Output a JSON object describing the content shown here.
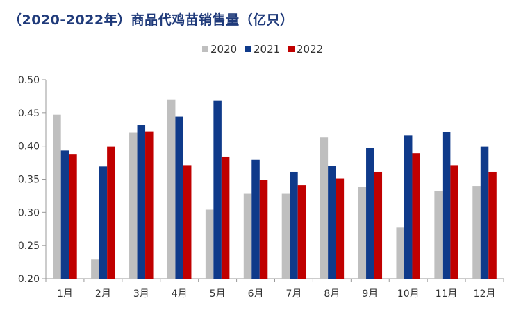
{
  "title": "（2020-2022年）商品代鸡苗销售量（亿只）",
  "chart_data": {
    "type": "bar",
    "title": "（2020-2022年）商品代鸡苗销售量（亿只）",
    "xlabel": "",
    "ylabel": "",
    "categories": [
      "1月",
      "2月",
      "3月",
      "4月",
      "5月",
      "6月",
      "7月",
      "8月",
      "9月",
      "10月",
      "11月",
      "12月"
    ],
    "series": [
      {
        "name": "2020",
        "color": "#bfbfbf",
        "values": [
          0.447,
          0.229,
          0.42,
          0.47,
          0.304,
          0.328,
          0.328,
          0.413,
          0.338,
          0.277,
          0.332,
          0.34
        ]
      },
      {
        "name": "2021",
        "color": "#0f3a8a",
        "values": [
          0.393,
          0.369,
          0.431,
          0.444,
          0.469,
          0.379,
          0.361,
          0.37,
          0.397,
          0.416,
          0.421,
          0.399
        ]
      },
      {
        "name": "2022",
        "color": "#c00000",
        "values": [
          0.388,
          0.399,
          0.422,
          0.371,
          0.384,
          0.349,
          0.341,
          0.351,
          0.361,
          0.389,
          0.371,
          0.361
        ]
      }
    ],
    "ylim": [
      0.2,
      0.5
    ],
    "yticks": [
      "0.20",
      "0.25",
      "0.30",
      "0.35",
      "0.40",
      "0.45",
      "0.50"
    ],
    "grid": false,
    "legend": "top-center"
  }
}
